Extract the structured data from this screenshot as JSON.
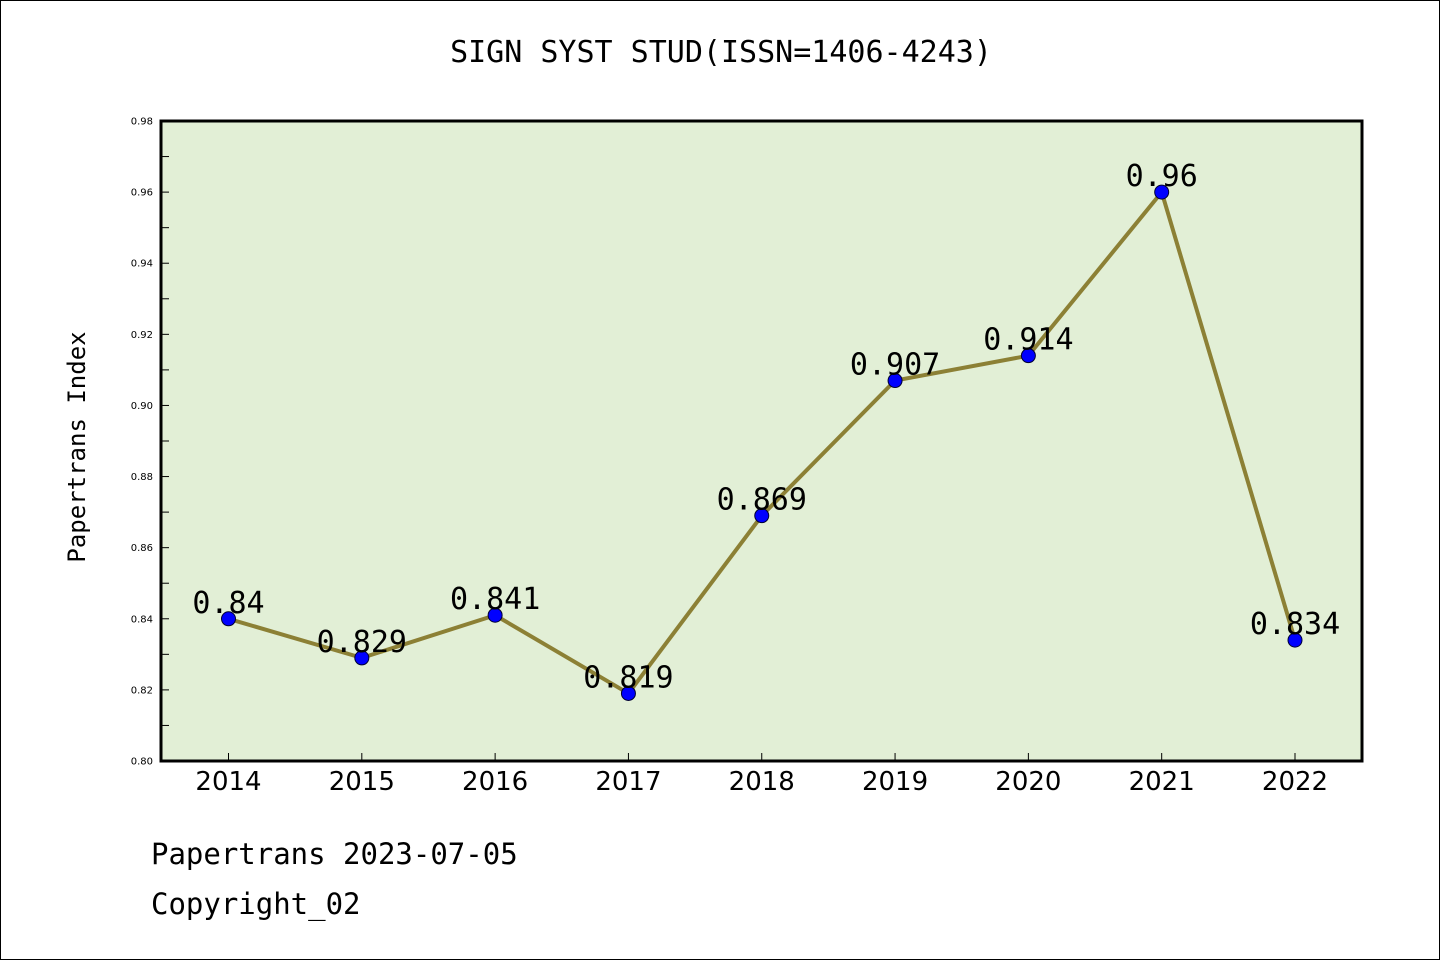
{
  "chart_data": {
    "type": "line",
    "title": "SIGN SYST STUD(ISSN=1406-4243)",
    "xlabel": "",
    "ylabel": "Papertrans Index",
    "categories": [
      "2014",
      "2015",
      "2016",
      "2017",
      "2018",
      "2019",
      "2020",
      "2021",
      "2022"
    ],
    "values": [
      0.84,
      0.829,
      0.841,
      0.819,
      0.869,
      0.907,
      0.914,
      0.96,
      0.834
    ],
    "data_labels": [
      "0.84",
      "0.829",
      "0.841",
      "0.819",
      "0.869",
      "0.907",
      "0.914",
      "0.96",
      "0.834"
    ],
    "ylim": [
      0.8,
      0.98
    ],
    "yticks": [
      "0.80",
      "0.82",
      "0.84",
      "0.86",
      "0.88",
      "0.90",
      "0.92",
      "0.94",
      "0.96",
      "0.98"
    ],
    "grid": false,
    "legend": "none",
    "colors": {
      "plot_background": "#e2efd6",
      "line": "#8c8035",
      "marker": "#0000ff",
      "frame": "#000000"
    }
  },
  "footer": {
    "date_text": "Papertrans 2023-07-05",
    "copyright_text": "Copyright_02"
  }
}
